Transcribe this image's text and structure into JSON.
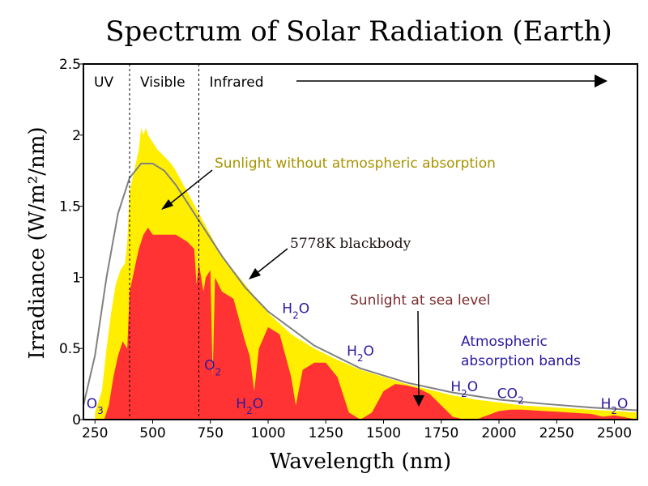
{
  "colors": {
    "above_atmosphere": "#ffee00",
    "sea_level": "#ff3333",
    "blackbody": "#808080",
    "molecule_text": "#2a1aa0",
    "sunlight_label": "#a89400",
    "sea_level_label": "#7a2a2a"
  },
  "chart_data": {
    "type": "area",
    "title": "Spectrum of Solar Radiation (Earth)",
    "xlabel": "Wavelength (nm)",
    "ylabel": "Irradiance (W/m²/nm)",
    "xlim": [
      200,
      2600
    ],
    "ylim": [
      0,
      2.5
    ],
    "xticks": [
      250,
      500,
      750,
      1000,
      1250,
      1500,
      1750,
      2000,
      2250,
      2500
    ],
    "yticks": [
      0,
      0.5,
      1,
      1.5,
      2,
      2.5
    ],
    "ytick_labels": [
      "0",
      "0.5",
      "1",
      "1.5",
      "2",
      "2.5"
    ],
    "regions": [
      {
        "label": "UV",
        "x_start": 200,
        "x_end": 400
      },
      {
        "label": "Visible",
        "x_start": 400,
        "x_end": 700
      },
      {
        "label": "Infrared",
        "x_start": 700,
        "x_end": 2600
      }
    ],
    "series": [
      {
        "name": "Sunlight without atmospheric absorption",
        "x": [
          250,
          280,
          300,
          320,
          340,
          360,
          380,
          390,
          400,
          420,
          440,
          450,
          460,
          470,
          480,
          500,
          520,
          550,
          580,
          600,
          650,
          700,
          750,
          800,
          850,
          900,
          950,
          1000,
          1100,
          1200,
          1300,
          1400,
          1500,
          1600,
          1700,
          1800,
          1900,
          2000,
          2100,
          2200,
          2300,
          2400,
          2500,
          2600
        ],
        "y": [
          0.05,
          0.2,
          0.5,
          0.75,
          0.95,
          1.05,
          1.1,
          1.25,
          1.6,
          1.75,
          1.9,
          2.05,
          2.0,
          2.05,
          2.0,
          1.95,
          1.9,
          1.85,
          1.8,
          1.75,
          1.6,
          1.45,
          1.3,
          1.15,
          1.05,
          0.95,
          0.85,
          0.75,
          0.6,
          0.5,
          0.42,
          0.35,
          0.3,
          0.25,
          0.21,
          0.17,
          0.14,
          0.12,
          0.1,
          0.09,
          0.08,
          0.07,
          0.06,
          0.05
        ]
      },
      {
        "name": "Sunlight at sea level",
        "x": [
          290,
          310,
          330,
          350,
          370,
          390,
          400,
          420,
          440,
          460,
          480,
          500,
          550,
          600,
          650,
          680,
          690,
          700,
          720,
          730,
          750,
          760,
          770,
          800,
          850,
          900,
          920,
          940,
          960,
          1000,
          1050,
          1100,
          1120,
          1150,
          1200,
          1250,
          1300,
          1350,
          1400,
          1450,
          1500,
          1550,
          1600,
          1650,
          1700,
          1750,
          1800,
          1850,
          1900,
          1950,
          2000,
          2050,
          2100,
          2200,
          2300,
          2400,
          2450,
          2500,
          2600
        ],
        "y": [
          0,
          0.1,
          0.3,
          0.45,
          0.55,
          0.5,
          0.9,
          1.05,
          1.2,
          1.3,
          1.35,
          1.3,
          1.3,
          1.3,
          1.25,
          1.2,
          0.95,
          1.1,
          0.9,
          1.0,
          1.05,
          0.3,
          1.0,
          0.9,
          0.85,
          0.55,
          0.45,
          0.2,
          0.5,
          0.65,
          0.6,
          0.3,
          0.1,
          0.35,
          0.4,
          0.4,
          0.3,
          0.05,
          0.0,
          0.05,
          0.2,
          0.25,
          0.24,
          0.22,
          0.18,
          0.1,
          0.02,
          0.0,
          0.0,
          0.03,
          0.06,
          0.07,
          0.07,
          0.06,
          0.05,
          0.04,
          0.02,
          0.03,
          0.0
        ]
      },
      {
        "name": "5778K blackbody",
        "x": [
          200,
          250,
          300,
          350,
          400,
          450,
          500,
          550,
          600,
          700,
          800,
          900,
          1000,
          1200,
          1400,
          1600,
          1800,
          2000,
          2200,
          2400,
          2600
        ],
        "y": [
          0.1,
          0.45,
          1.0,
          1.45,
          1.7,
          1.8,
          1.8,
          1.75,
          1.65,
          1.4,
          1.15,
          0.93,
          0.76,
          0.52,
          0.36,
          0.26,
          0.19,
          0.14,
          0.11,
          0.085,
          0.065
        ]
      }
    ],
    "annotations": {
      "sunlight_without": "Sunlight without atmospheric absorption",
      "blackbody": "5778K blackbody",
      "sea_level": "Sunlight at sea level",
      "absorption_bands_line1": "Atmospheric",
      "absorption_bands_line2": "absorption bands"
    },
    "molecules": [
      {
        "base": "O",
        "sub": "3",
        "x": 250,
        "y": 0.08
      },
      {
        "base": "O",
        "sub": "2",
        "x": 760,
        "y": 0.35
      },
      {
        "base": "H",
        "sub": "2",
        "mid": "O",
        "x": 920,
        "y": 0.08
      },
      {
        "base": "H",
        "sub": "2",
        "mid": "O",
        "x": 1120,
        "y": 0.75
      },
      {
        "base": "H",
        "sub": "2",
        "mid": "O",
        "x": 1400,
        "y": 0.45
      },
      {
        "base": "H",
        "sub": "2",
        "mid": "O",
        "x": 1850,
        "y": 0.2
      },
      {
        "base": "CO",
        "sub": "2",
        "x": 2050,
        "y": 0.15
      },
      {
        "base": "H",
        "sub": "2",
        "mid": "O",
        "x": 2500,
        "y": 0.08
      }
    ]
  }
}
